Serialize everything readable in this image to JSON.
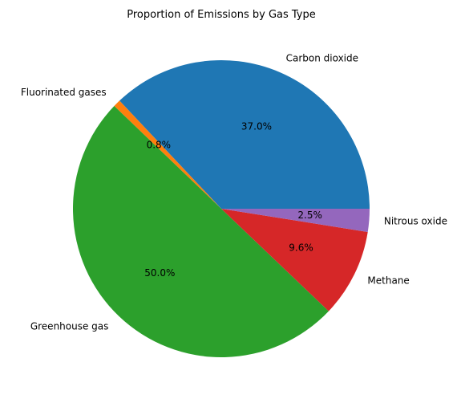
{
  "chart_data": {
    "type": "pie",
    "title": "Proportion of Emissions by Gas Type",
    "start_angle_deg": 0,
    "direction": "counterclockwise",
    "slices": [
      {
        "label": "Carbon dioxide",
        "value": 37.0,
        "pct_label": "37.0%",
        "color": "#1f77b4"
      },
      {
        "label": "Fluorinated gases",
        "value": 0.8,
        "pct_label": "0.8%",
        "color": "#ff7f0e"
      },
      {
        "label": "Greenhouse gas",
        "value": 50.0,
        "pct_label": "50.0%",
        "color": "#2ca02c"
      },
      {
        "label": "Methane",
        "value": 9.6,
        "pct_label": "9.6%",
        "color": "#d62728"
      },
      {
        "label": "Nitrous oxide",
        "value": 2.5,
        "pct_label": "2.5%",
        "color": "#9467bd"
      }
    ]
  }
}
